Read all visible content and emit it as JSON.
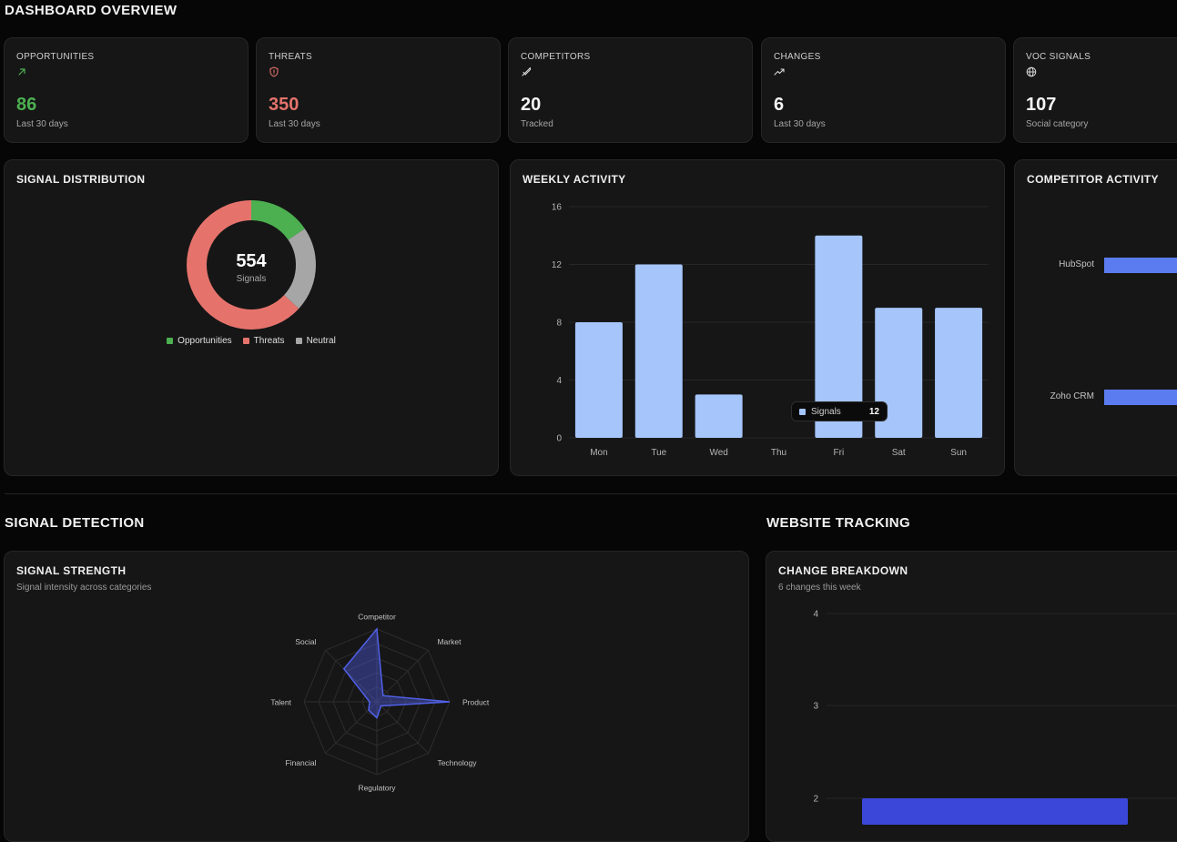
{
  "header": {
    "title": "DASHBOARD OVERVIEW"
  },
  "stats": [
    {
      "label": "OPPORTUNITIES",
      "value": "86",
      "sub": "Last 30 days",
      "icon": "arrow-up-right-icon",
      "color": "#4caf50"
    },
    {
      "label": "THREATS",
      "value": "350",
      "sub": "Last 30 days",
      "icon": "shield-alert-icon",
      "color": "#e5736c"
    },
    {
      "label": "COMPETITORS",
      "value": "20",
      "sub": "Tracked",
      "icon": "sword-icon",
      "color": "#f5f5f5"
    },
    {
      "label": "CHANGES",
      "value": "6",
      "sub": "Last 30 days",
      "icon": "trending-up-icon",
      "color": "#f5f5f5"
    },
    {
      "label": "VOC SIGNALS",
      "value": "107",
      "sub": "Social category",
      "icon": "globe-icon",
      "color": "#f5f5f5"
    }
  ],
  "signal_distribution": {
    "title": "SIGNAL DISTRIBUTION",
    "center_value": "554",
    "center_label": "Signals",
    "legend": [
      {
        "label": "Opportunities",
        "color": "#4caf50"
      },
      {
        "label": "Threats",
        "color": "#e5736c"
      },
      {
        "label": "Neutral",
        "color": "#a6a6a6"
      }
    ],
    "chart_data": {
      "type": "pie",
      "categories": [
        "Opportunities",
        "Threats",
        "Neutral"
      ],
      "values": [
        86,
        350,
        118
      ]
    }
  },
  "weekly_activity": {
    "title": "WEEKLY ACTIVITY",
    "tooltip": {
      "label": "Signals",
      "value": "12"
    },
    "bar_color": "#a5c5fb",
    "chart_data": {
      "type": "bar",
      "categories": [
        "Mon",
        "Tue",
        "Wed",
        "Thu",
        "Fri",
        "Sat",
        "Sun"
      ],
      "values": [
        8,
        12,
        3,
        0,
        14,
        9,
        9
      ],
      "ylim": [
        0,
        16
      ],
      "yticks": [
        "0",
        "4",
        "8",
        "12",
        "16"
      ]
    }
  },
  "competitor_activity": {
    "title": "COMPETITOR ACTIVITY",
    "bar_color": "#5b7cf0",
    "chart_data": {
      "type": "bar",
      "categories": [
        "HubSpot",
        "Zoho CRM"
      ]
    }
  },
  "signal_detection": {
    "title": "SIGNAL DETECTION"
  },
  "signal_strength": {
    "title": "SIGNAL STRENGTH",
    "subtitle": "Signal intensity across categories",
    "color": "#5060e8",
    "chart_data": {
      "type": "radar",
      "categories": [
        "Competitor",
        "Market",
        "Product",
        "Technology",
        "Regulatory",
        "Financial",
        "Talent",
        "Social"
      ],
      "values": [
        100,
        12,
        100,
        8,
        22,
        16,
        10,
        64
      ],
      "ylim": [
        0,
        100
      ]
    }
  },
  "website_tracking": {
    "title": "WEBSITE TRACKING"
  },
  "change_breakdown": {
    "title": "CHANGE BREAKDOWN",
    "subtitle": "6 changes this week",
    "bar_color": "#3b47d8",
    "chart_data": {
      "type": "bar",
      "yticks": [
        "4",
        "3",
        "2"
      ],
      "ylim": [
        2,
        4
      ],
      "values": [
        2
      ]
    }
  }
}
